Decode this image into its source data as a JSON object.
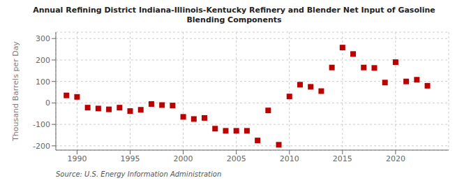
{
  "chart_data": {
    "type": "scatter",
    "title": "Annual Refining District Indiana-Illinois-Kentucky Refinery and Blender Net Input of Gasoline\nBlending Components",
    "y_label": "Thousand Barrels per Day",
    "annotations": [
      "Source: U.S. Energy Information Administration"
    ],
    "x": [
      1989,
      1990,
      1991,
      1992,
      1993,
      1994,
      1995,
      1996,
      1997,
      1998,
      1999,
      2000,
      2001,
      2002,
      2003,
      2004,
      2005,
      2006,
      2007,
      2008,
      2009,
      2010,
      2011,
      2012,
      2013,
      2014,
      2015,
      2016,
      2017,
      2018,
      2019,
      2020,
      2021,
      2022,
      2023
    ],
    "values": [
      35,
      28,
      -22,
      -26,
      -30,
      -22,
      -38,
      -32,
      -5,
      -10,
      -12,
      -65,
      -75,
      -70,
      -120,
      -130,
      -130,
      -130,
      -175,
      -35,
      -195,
      30,
      85,
      75,
      55,
      165,
      258,
      228,
      165,
      163,
      95,
      190,
      100,
      108,
      80
    ],
    "color": "#bb0000",
    "marker": "square",
    "xlim": [
      1988.0,
      2025.0
    ],
    "ylim": [
      -220,
      330
    ],
    "yticks": [
      -200,
      -100,
      0,
      100,
      200,
      300
    ],
    "xticks": [
      1990,
      1995,
      2000,
      2005,
      2010,
      2015,
      2020
    ],
    "grid": true
  }
}
